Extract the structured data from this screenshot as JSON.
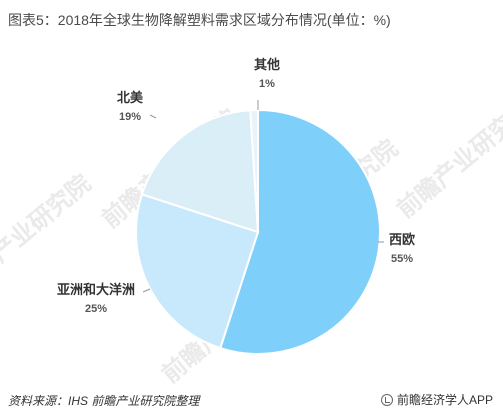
{
  "title": "图表5：2018年全球生物降解塑料需求区域分布情况(单位：%)",
  "chart_data": {
    "type": "pie",
    "title": "图表5：2018年全球生物降解塑料需求区域分布情况(单位：%)",
    "slices": [
      {
        "label": "西欧",
        "value": 55,
        "value_label": "55%",
        "color": "#7fcffb"
      },
      {
        "label": "亚洲和大洋洲",
        "value": 25,
        "value_label": "25%",
        "color": "#c8e9fb"
      },
      {
        "label": "北美",
        "value": 19,
        "value_label": "19%",
        "color": "#daeef7"
      },
      {
        "label": "其他",
        "value": 1,
        "value_label": "1%",
        "color": "#e8f4f9"
      }
    ],
    "start_angle": "12 o'clock",
    "direction": "clockwise",
    "legend": "none (labels beside slices)"
  },
  "watermark": "前瞻产业研究院",
  "footer": {
    "source": "资料来源：IHS 前瞻产业研究院整理",
    "brand": "前瞻经济学人APP"
  }
}
